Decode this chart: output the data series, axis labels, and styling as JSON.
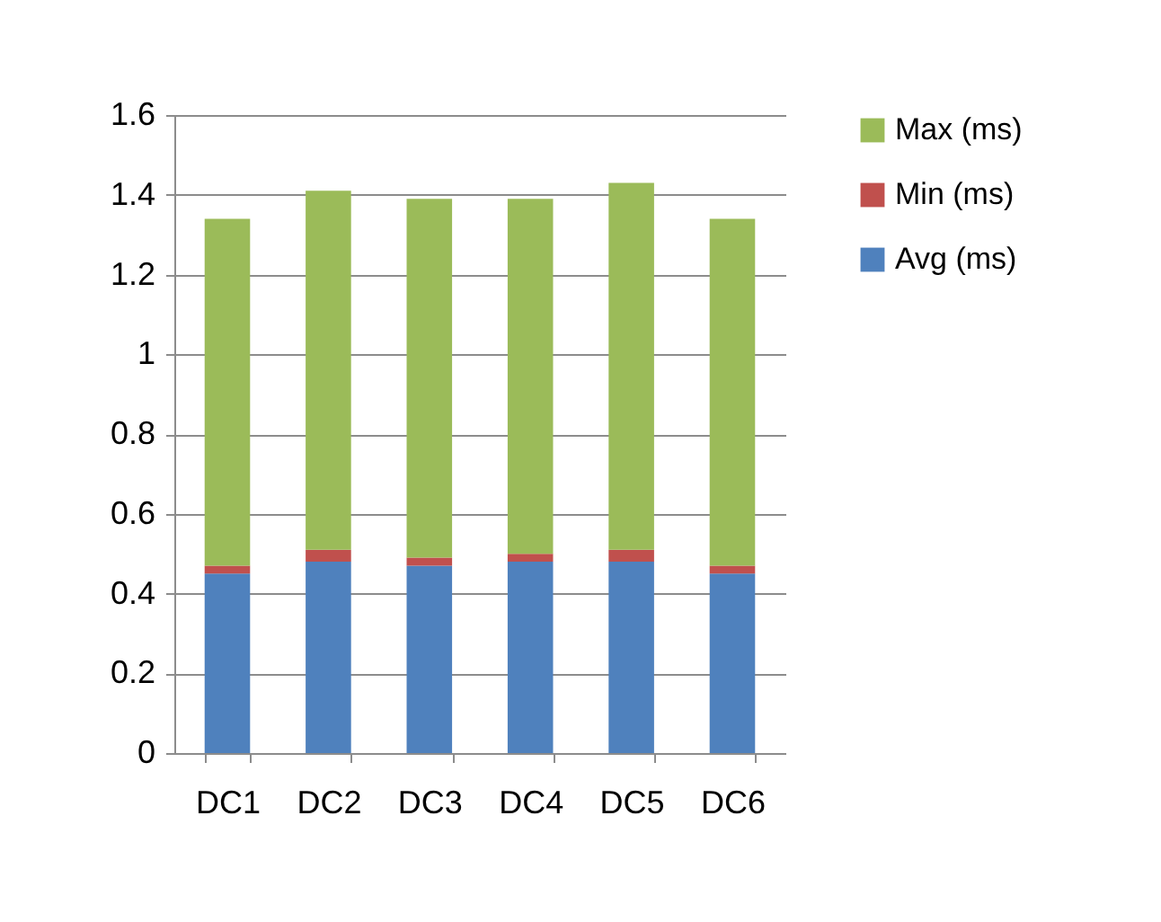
{
  "chart_data": {
    "type": "bar",
    "stacked": true,
    "categories": [
      "DC1",
      "DC2",
      "DC3",
      "DC4",
      "DC5",
      "DC6"
    ],
    "series": [
      {
        "name": "Avg (ms)",
        "color": "#4f81bd",
        "values": [
          0.45,
          0.48,
          0.47,
          0.48,
          0.48,
          0.45
        ]
      },
      {
        "name": "Min (ms)",
        "color": "#c0504d",
        "values": [
          0.02,
          0.03,
          0.02,
          0.02,
          0.03,
          0.02
        ]
      },
      {
        "name": "Max (ms)",
        "color": "#9bbb59",
        "values": [
          0.87,
          0.9,
          0.9,
          0.89,
          0.92,
          0.87
        ]
      }
    ],
    "ylim": [
      0,
      1.6
    ],
    "yticks": [
      0,
      0.2,
      0.4,
      0.6,
      0.8,
      1,
      1.2,
      1.4,
      1.6
    ],
    "grid": "y",
    "legend": "right"
  }
}
